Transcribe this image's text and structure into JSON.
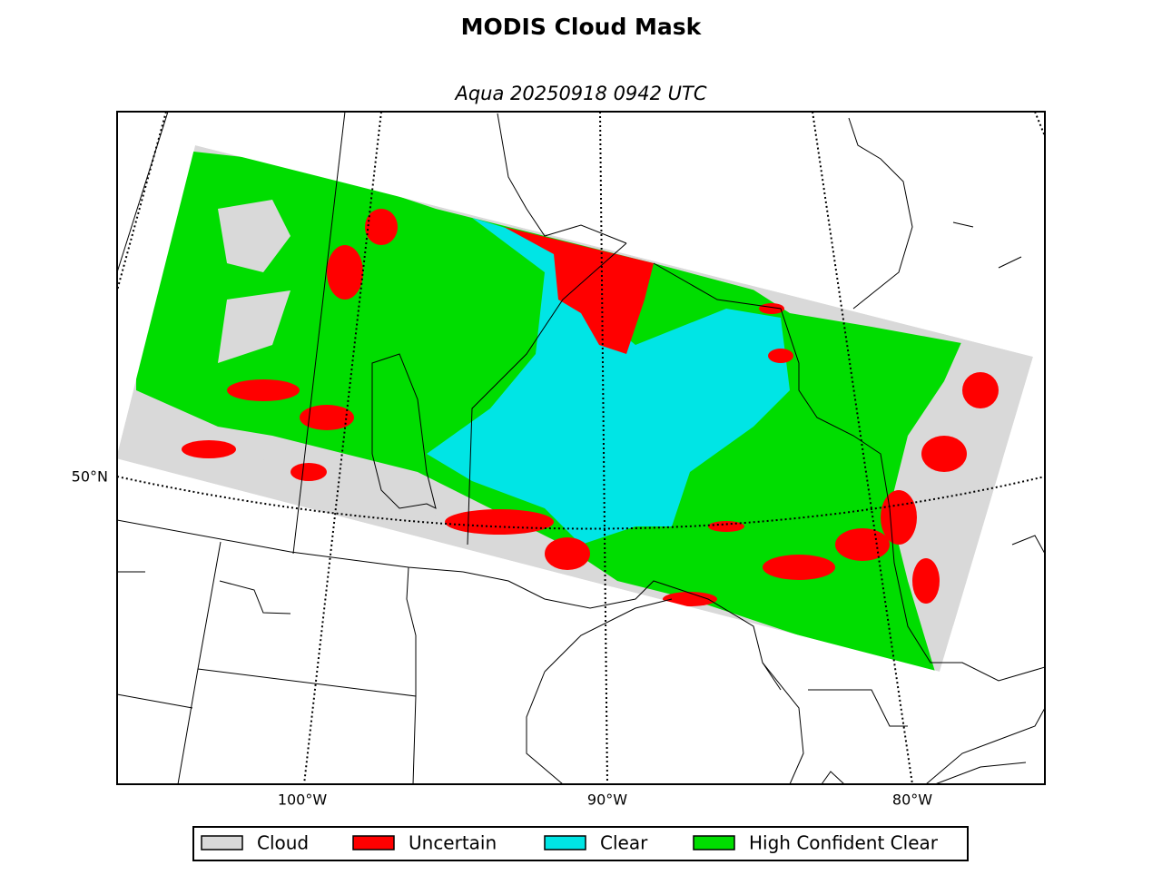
{
  "title": "MODIS Cloud Mask",
  "subtitle": "Aqua 20250918 0942 UTC",
  "lat_labels": [
    "50°N"
  ],
  "lon_labels": [
    "100°W",
    "90°W",
    "80°W"
  ],
  "legend": [
    {
      "label": "Cloud",
      "color": "#d9d9d9"
    },
    {
      "label": "Uncertain",
      "color": "#ff0000"
    },
    {
      "label": "Clear",
      "color": "#00e5e5"
    },
    {
      "label": "High Confident Clear",
      "color": "#00dd00"
    }
  ]
}
